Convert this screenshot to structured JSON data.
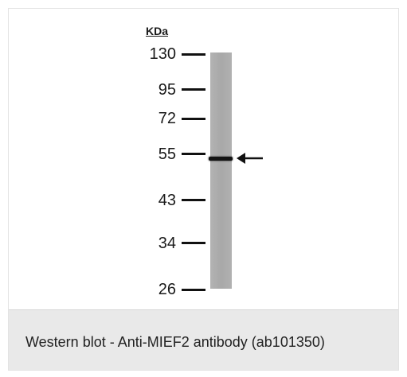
{
  "figure": {
    "unit_label": "KDa",
    "markers": [
      {
        "label": "130"
      },
      {
        "label": "95"
      },
      {
        "label": "72"
      },
      {
        "label": "55"
      },
      {
        "label": "43"
      },
      {
        "label": "34"
      },
      {
        "label": "26"
      }
    ],
    "arrow_icon": "left-arrow-icon"
  },
  "caption": {
    "text": "Western blot - Anti-MIEF2 antibody (ab101350)"
  }
}
